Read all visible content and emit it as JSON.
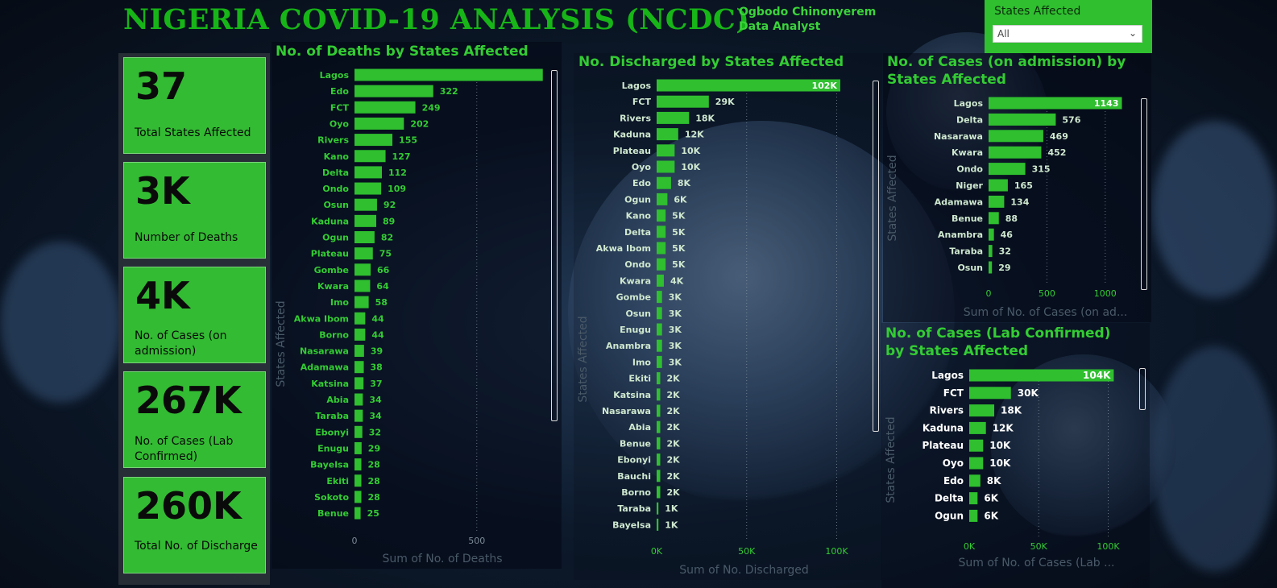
{
  "header": {
    "title": "NIGERIA COVID-19 ANALYSIS (NCDC)",
    "author_name": "Ogbodo Chinonyerem",
    "author_role": "Data Analyst"
  },
  "slicer": {
    "label": "States Affected",
    "value": "All"
  },
  "kpis": [
    {
      "value": "37",
      "label": "Total States Affected"
    },
    {
      "value": "3K",
      "label": "Number of Deaths"
    },
    {
      "value": "4K",
      "label": "No. of Cases (on admission)"
    },
    {
      "value": "267K",
      "label": "No. of Cases (Lab Confirmed)"
    },
    {
      "value": "260K",
      "label": "Total No. of Discharge"
    }
  ],
  "colors": {
    "bar": "#2fbf2f",
    "title": "#17b517",
    "chart_title": "#33cc33",
    "kpi_bg": "#33bb33"
  },
  "chart_data": [
    {
      "type": "bar",
      "orientation": "horizontal",
      "title": "No. of Deaths by States Affected",
      "xlabel": "Sum of No. of Deaths",
      "ylabel": "States Affected",
      "xlim": [
        0,
        850
      ],
      "xticks": [
        "0",
        "500"
      ],
      "xtick_values": [
        0,
        500
      ],
      "categories": [
        "Lagos",
        "Edo",
        "FCT",
        "Oyo",
        "Rivers",
        "Kano",
        "Delta",
        "Ondo",
        "Osun",
        "Kaduna",
        "Ogun",
        "Plateau",
        "Gombe",
        "Kwara",
        "Imo",
        "Akwa Ibom",
        "Borno",
        "Nasarawa",
        "Adamawa",
        "Katsina",
        "Abia",
        "Taraba",
        "Ebonyi",
        "Enugu",
        "Bayelsa",
        "Ekiti",
        "Sokoto",
        "Benue"
      ],
      "values": [
        770,
        322,
        249,
        202,
        155,
        127,
        112,
        109,
        92,
        89,
        82,
        75,
        66,
        64,
        58,
        44,
        44,
        39,
        38,
        37,
        34,
        34,
        32,
        29,
        28,
        28,
        28,
        25
      ],
      "labels": [
        "",
        "322",
        "249",
        "202",
        "155",
        "127",
        "112",
        "109",
        "92",
        "89",
        "82",
        "75",
        "66",
        "64",
        "58",
        "44",
        "44",
        "39",
        "38",
        "37",
        "34",
        "34",
        "32",
        "29",
        "28",
        "28",
        "28",
        "25"
      ]
    },
    {
      "type": "bar",
      "orientation": "horizontal",
      "title": "No. Discharged by States Affected",
      "xlabel": "Sum of No. Discharged",
      "ylabel": "States Affected",
      "xlim": [
        0,
        115000
      ],
      "xticks": [
        "0K",
        "50K",
        "100K"
      ],
      "xtick_values": [
        0,
        50000,
        100000
      ],
      "categories": [
        "Lagos",
        "FCT",
        "Rivers",
        "Kaduna",
        "Plateau",
        "Oyo",
        "Edo",
        "Ogun",
        "Kano",
        "Delta",
        "Akwa Ibom",
        "Ondo",
        "Kwara",
        "Gombe",
        "Osun",
        "Enugu",
        "Anambra",
        "Imo",
        "Ekiti",
        "Katsina",
        "Nasarawa",
        "Abia",
        "Benue",
        "Ebonyi",
        "Bauchi",
        "Borno",
        "Taraba",
        "Bayelsa"
      ],
      "values": [
        102000,
        29000,
        18000,
        12000,
        10000,
        10000,
        8000,
        6000,
        5000,
        5000,
        5000,
        5000,
        4000,
        3000,
        3000,
        3000,
        3000,
        3000,
        2000,
        2000,
        2000,
        2000,
        2000,
        2000,
        2000,
        2000,
        1000,
        1000
      ],
      "labels": [
        "102K",
        "29K",
        "18K",
        "12K",
        "10K",
        "10K",
        "8K",
        "6K",
        "5K",
        "5K",
        "5K",
        "5K",
        "4K",
        "3K",
        "3K",
        "3K",
        "3K",
        "3K",
        "2K",
        "2K",
        "2K",
        "2K",
        "2K",
        "2K",
        "2K",
        "2K",
        "1K",
        "1K"
      ]
    },
    {
      "type": "bar",
      "orientation": "horizontal",
      "title": "No. of Cases (on admission) by States Affected",
      "xlabel": "Sum of No. of Cases (on ad...",
      "ylabel": "States Affected",
      "xlim": [
        0,
        1250
      ],
      "xticks": [
        "0",
        "500",
        "1000"
      ],
      "xtick_values": [
        0,
        500,
        1000
      ],
      "categories": [
        "Lagos",
        "Delta",
        "Nasarawa",
        "Kwara",
        "Ondo",
        "Niger",
        "Adamawa",
        "Benue",
        "Anambra",
        "Taraba",
        "Osun"
      ],
      "values": [
        1143,
        576,
        469,
        452,
        315,
        165,
        134,
        88,
        46,
        32,
        29
      ],
      "labels": [
        "1143",
        "576",
        "469",
        "452",
        "315",
        "165",
        "134",
        "88",
        "46",
        "32",
        "29"
      ]
    },
    {
      "type": "bar",
      "orientation": "horizontal",
      "title": "No. of Cases (Lab Confirmed) by States Affected",
      "xlabel": "Sum of No. of Cases (Lab ...",
      "ylabel": "States Affected",
      "xlim": [
        0,
        120000
      ],
      "xticks": [
        "0K",
        "50K",
        "100K"
      ],
      "xtick_values": [
        0,
        50000,
        100000
      ],
      "categories": [
        "Lagos",
        "FCT",
        "Rivers",
        "Kaduna",
        "Plateau",
        "Oyo",
        "Edo",
        "Delta",
        "Ogun"
      ],
      "values": [
        104000,
        30000,
        18000,
        12000,
        10000,
        10000,
        8000,
        6000,
        6000
      ],
      "labels": [
        "104K",
        "30K",
        "18K",
        "12K",
        "10K",
        "10K",
        "8K",
        "6K",
        "6K"
      ]
    }
  ]
}
